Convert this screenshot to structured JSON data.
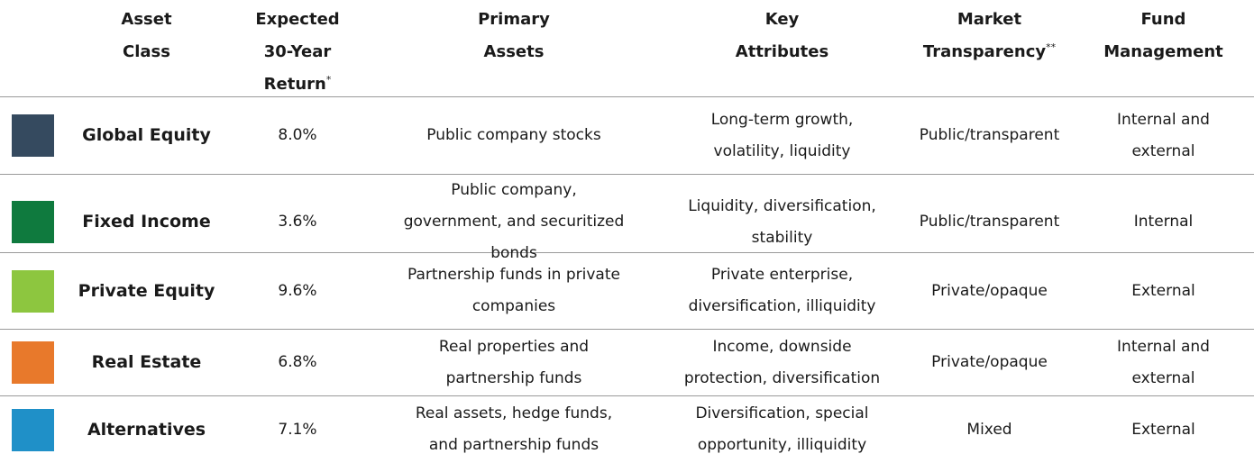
{
  "table": {
    "header": [
      {
        "lines": [
          "Asset",
          "Class"
        ]
      },
      {
        "lines": [
          "Expected",
          "30-Year",
          "Return"
        ],
        "note": "*"
      },
      {
        "lines": [
          "Primary",
          "Assets"
        ]
      },
      {
        "lines": [
          "Key",
          "Attributes"
        ]
      },
      {
        "lines": [
          "Market",
          "Transparency"
        ],
        "note": "**"
      },
      {
        "lines": [
          "Fund",
          "Management"
        ]
      }
    ],
    "rows": [
      {
        "color": "#354a5f",
        "cells": [
          [
            "Global Equity"
          ],
          [
            "8.0%"
          ],
          [
            "Public company stocks"
          ],
          [
            "Long-term growth,",
            "volatility, liquidity"
          ],
          [
            "Public/transparent"
          ],
          [
            "Internal and",
            "external"
          ]
        ]
      },
      {
        "color": "#0f7a3e",
        "cells": [
          [
            "Fixed Income"
          ],
          [
            "3.6%"
          ],
          [
            "Public company,",
            "government, and securitized",
            "bonds"
          ],
          [
            "Liquidity, diversification,",
            "stability"
          ],
          [
            "Public/transparent"
          ],
          [
            "Internal"
          ]
        ]
      },
      {
        "color": "#8dc63f",
        "cells": [
          [
            "Private Equity"
          ],
          [
            "9.6%"
          ],
          [
            "Partnership funds in private",
            "companies"
          ],
          [
            "Private enterprise,",
            "diversification, illiquidity"
          ],
          [
            "Private/opaque"
          ],
          [
            "External"
          ]
        ]
      },
      {
        "color": "#e8792b",
        "cells": [
          [
            "Real Estate"
          ],
          [
            "6.8%"
          ],
          [
            "Real properties and",
            "partnership funds"
          ],
          [
            "Income, downside",
            "protection, diversification"
          ],
          [
            "Private/opaque"
          ],
          [
            "Internal and",
            "external"
          ]
        ]
      },
      {
        "color": "#1f90c8",
        "cells": [
          [
            "Alternatives"
          ],
          [
            "7.1%"
          ],
          [
            "Real assets, hedge funds,",
            "and partnership funds"
          ],
          [
            "Diversification, special",
            "opportunity, illiquidity"
          ],
          [
            "Mixed"
          ],
          [
            "External"
          ]
        ]
      }
    ]
  }
}
